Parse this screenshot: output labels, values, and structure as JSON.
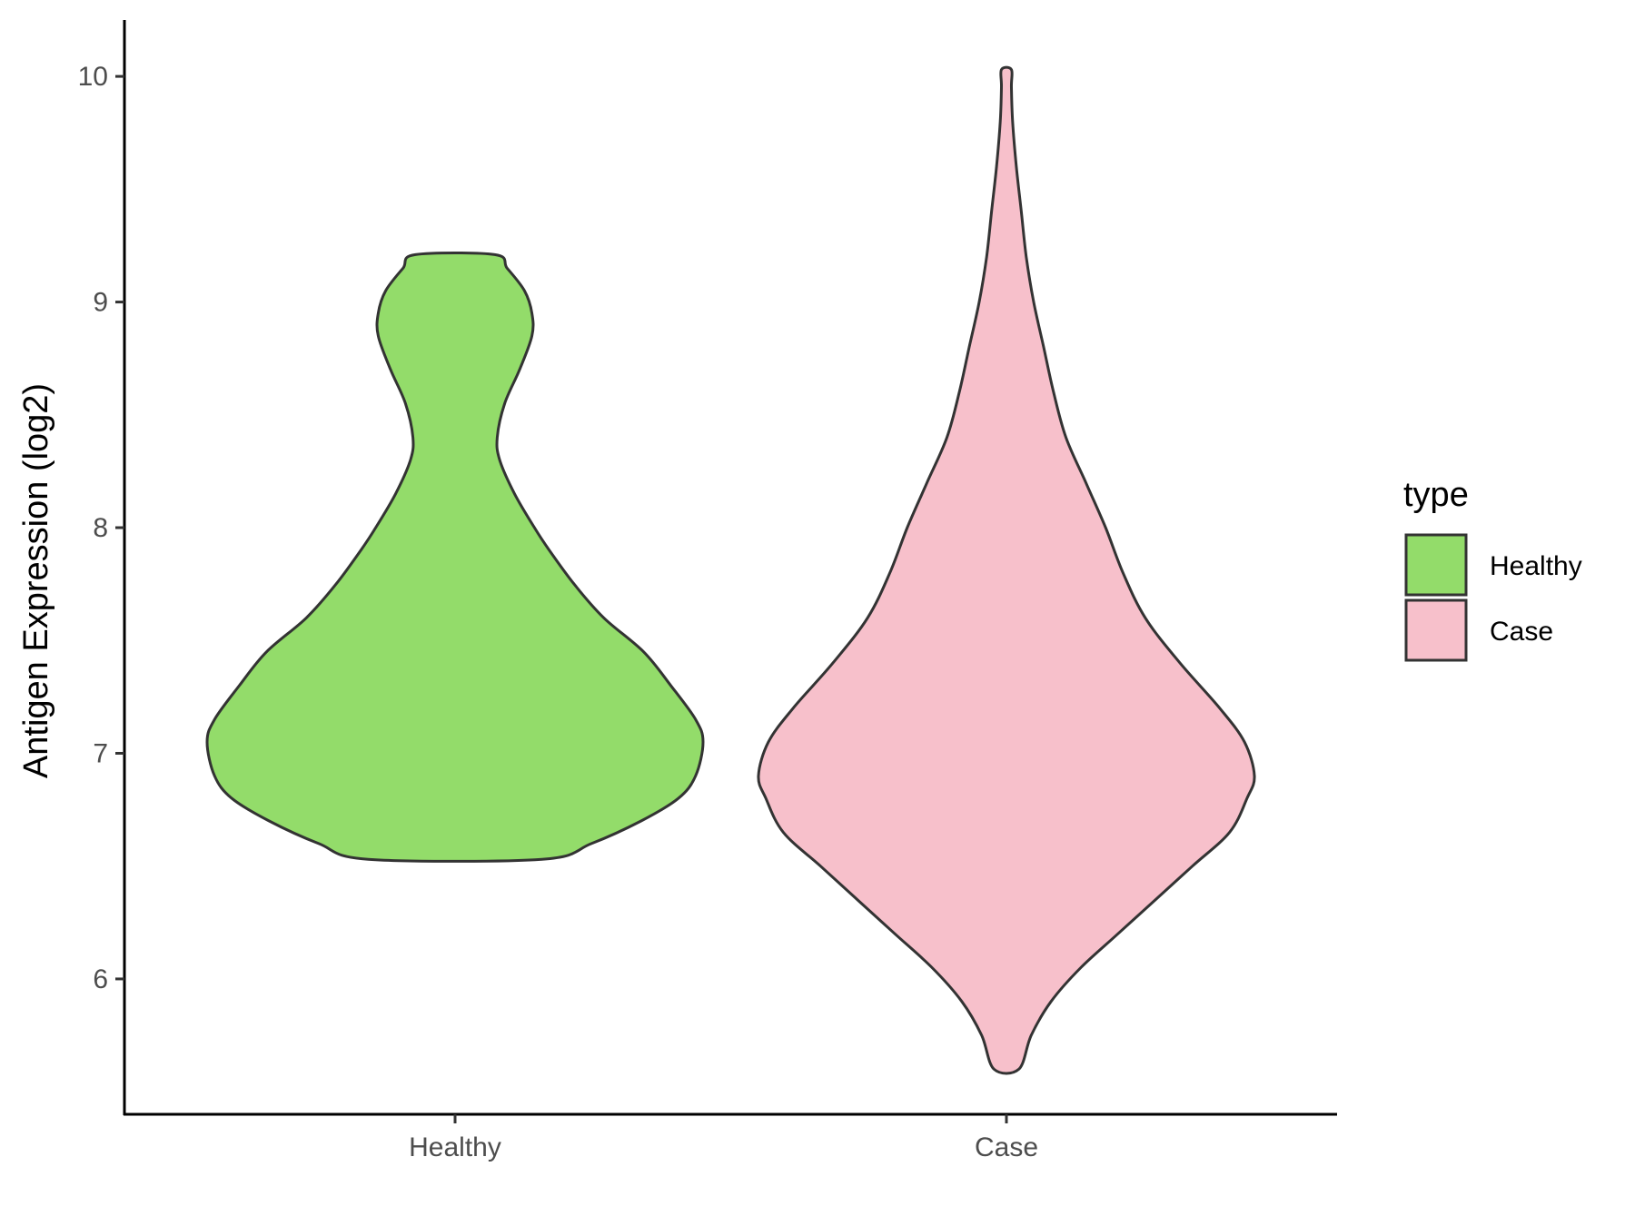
{
  "chart_data": {
    "type": "violin",
    "ylabel": "Antigen Expression (log2)",
    "xlabel": "",
    "ylim": [
      5.4,
      10.25
    ],
    "yticks": [
      6,
      7,
      8,
      9,
      10
    ],
    "categories": [
      "Healthy",
      "Case"
    ],
    "grid": false,
    "legend": {
      "title": "type",
      "placement": "right",
      "entries": [
        {
          "label": "Healthy",
          "color": "#93dc6a"
        },
        {
          "label": "Case",
          "color": "#f7c0cb"
        }
      ]
    },
    "series": [
      {
        "name": "Healthy",
        "color": "#93dc6a",
        "min": 6.53,
        "max": 9.21,
        "density_profile": [
          [
            6.53,
            0.35
          ],
          [
            6.6,
            0.55
          ],
          [
            6.7,
            0.75
          ],
          [
            6.8,
            0.9
          ],
          [
            6.9,
            0.97
          ],
          [
            7.05,
            1.0
          ],
          [
            7.15,
            0.97
          ],
          [
            7.3,
            0.87
          ],
          [
            7.45,
            0.76
          ],
          [
            7.6,
            0.6
          ],
          [
            7.75,
            0.48
          ],
          [
            7.9,
            0.38
          ],
          [
            8.0,
            0.32
          ],
          [
            8.15,
            0.24
          ],
          [
            8.3,
            0.18
          ],
          [
            8.4,
            0.17
          ],
          [
            8.55,
            0.2
          ],
          [
            8.7,
            0.26
          ],
          [
            8.85,
            0.31
          ],
          [
            8.95,
            0.31
          ],
          [
            9.05,
            0.28
          ],
          [
            9.15,
            0.21
          ],
          [
            9.21,
            0.16
          ]
        ]
      },
      {
        "name": "Case",
        "color": "#f7c0cb",
        "min": 5.6,
        "max": 10.03,
        "density_profile": [
          [
            5.6,
            0.05
          ],
          [
            5.75,
            0.1
          ],
          [
            5.9,
            0.18
          ],
          [
            6.05,
            0.3
          ],
          [
            6.2,
            0.45
          ],
          [
            6.35,
            0.6
          ],
          [
            6.5,
            0.75
          ],
          [
            6.65,
            0.9
          ],
          [
            6.8,
            0.97
          ],
          [
            6.9,
            1.0
          ],
          [
            7.05,
            0.96
          ],
          [
            7.2,
            0.86
          ],
          [
            7.4,
            0.7
          ],
          [
            7.6,
            0.56
          ],
          [
            7.8,
            0.47
          ],
          [
            8.0,
            0.4
          ],
          [
            8.2,
            0.32
          ],
          [
            8.4,
            0.24
          ],
          [
            8.6,
            0.19
          ],
          [
            8.8,
            0.15
          ],
          [
            9.0,
            0.11
          ],
          [
            9.2,
            0.08
          ],
          [
            9.4,
            0.06
          ],
          [
            9.6,
            0.04
          ],
          [
            9.8,
            0.025
          ],
          [
            9.95,
            0.02
          ],
          [
            10.03,
            0.02
          ]
        ]
      }
    ]
  }
}
